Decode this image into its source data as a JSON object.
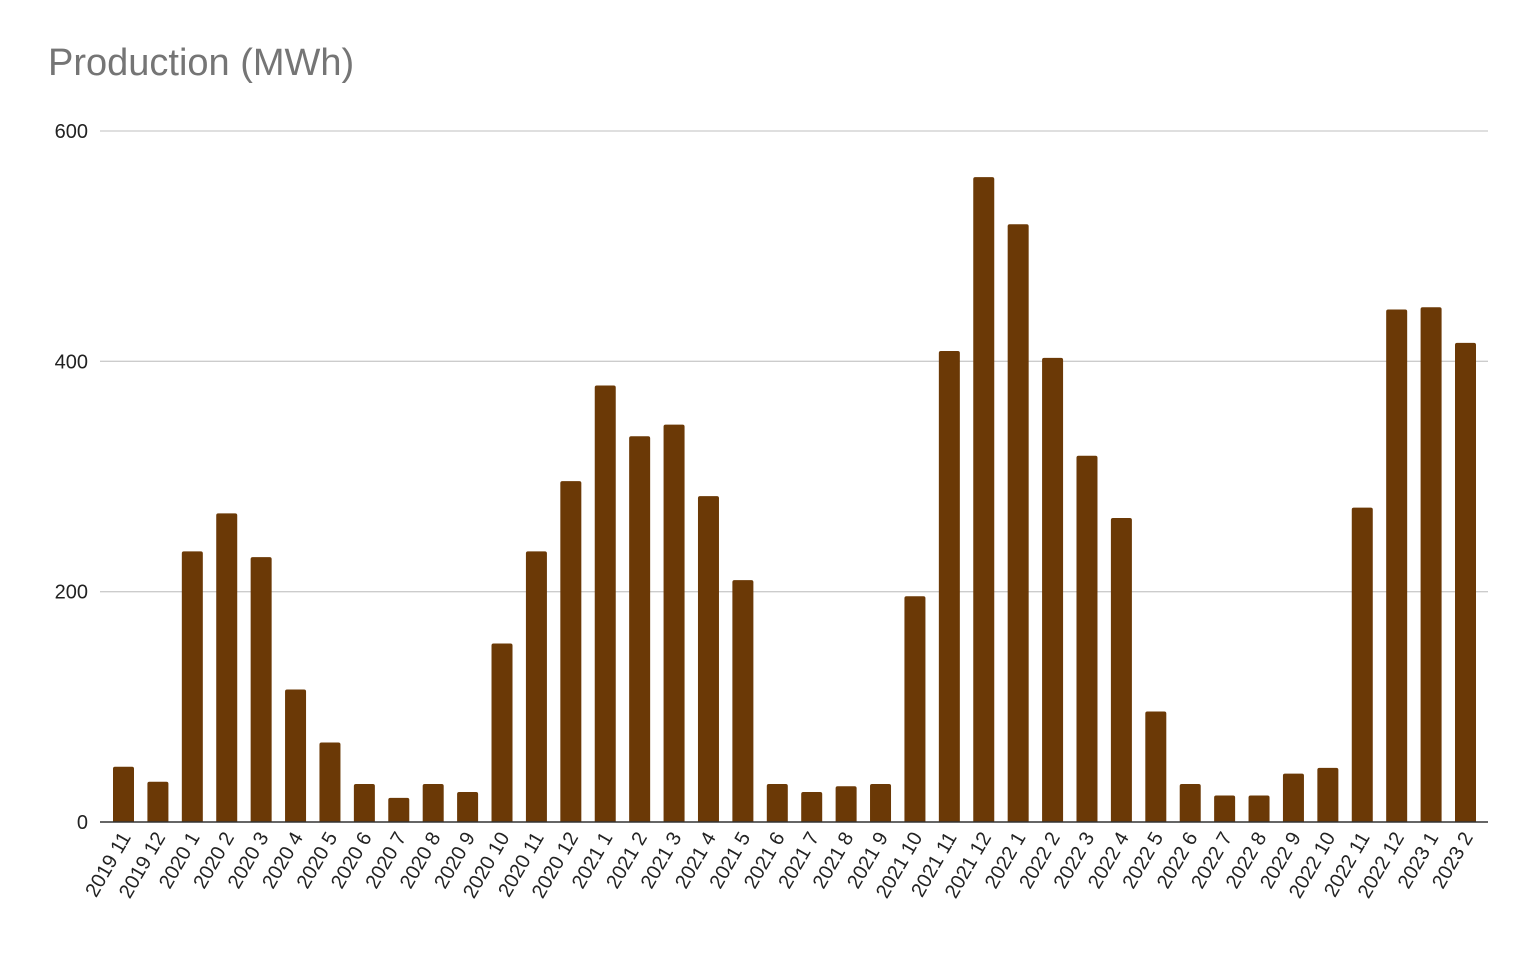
{
  "chart_data": {
    "type": "bar",
    "title": "Production (MWh)",
    "xlabel": "",
    "ylabel": "",
    "ylim": [
      0,
      600
    ],
    "yticks": [
      0,
      200,
      400,
      600
    ],
    "grid": true,
    "bar_color": "#6b3906",
    "categories": [
      "2019 11",
      "2019 12",
      "2020 1",
      "2020 2",
      "2020 3",
      "2020 4",
      "2020 5",
      "2020 6",
      "2020 7",
      "2020 8",
      "2020 9",
      "2020 10",
      "2020 11",
      "2020 12",
      "2021 1",
      "2021 2",
      "2021 3",
      "2021 4",
      "2021 5",
      "2021 6",
      "2021 7",
      "2021 8",
      "2021 9",
      "2021 10",
      "2021 11",
      "2021 12",
      "2022 1",
      "2022 2",
      "2022 3",
      "2022 4",
      "2022 5",
      "2022 6",
      "2022 7",
      "2022 8",
      "2022 9",
      "2022 10",
      "2022 11",
      "2022 12",
      "2023 1",
      "2023 2"
    ],
    "values": [
      48,
      35,
      235,
      268,
      230,
      115,
      69,
      33,
      21,
      33,
      26,
      155,
      235,
      296,
      379,
      335,
      345,
      283,
      210,
      33,
      26,
      31,
      33,
      196,
      409,
      560,
      519,
      403,
      318,
      264,
      96,
      33,
      23,
      23,
      42,
      47,
      273,
      445,
      447,
      416
    ]
  }
}
